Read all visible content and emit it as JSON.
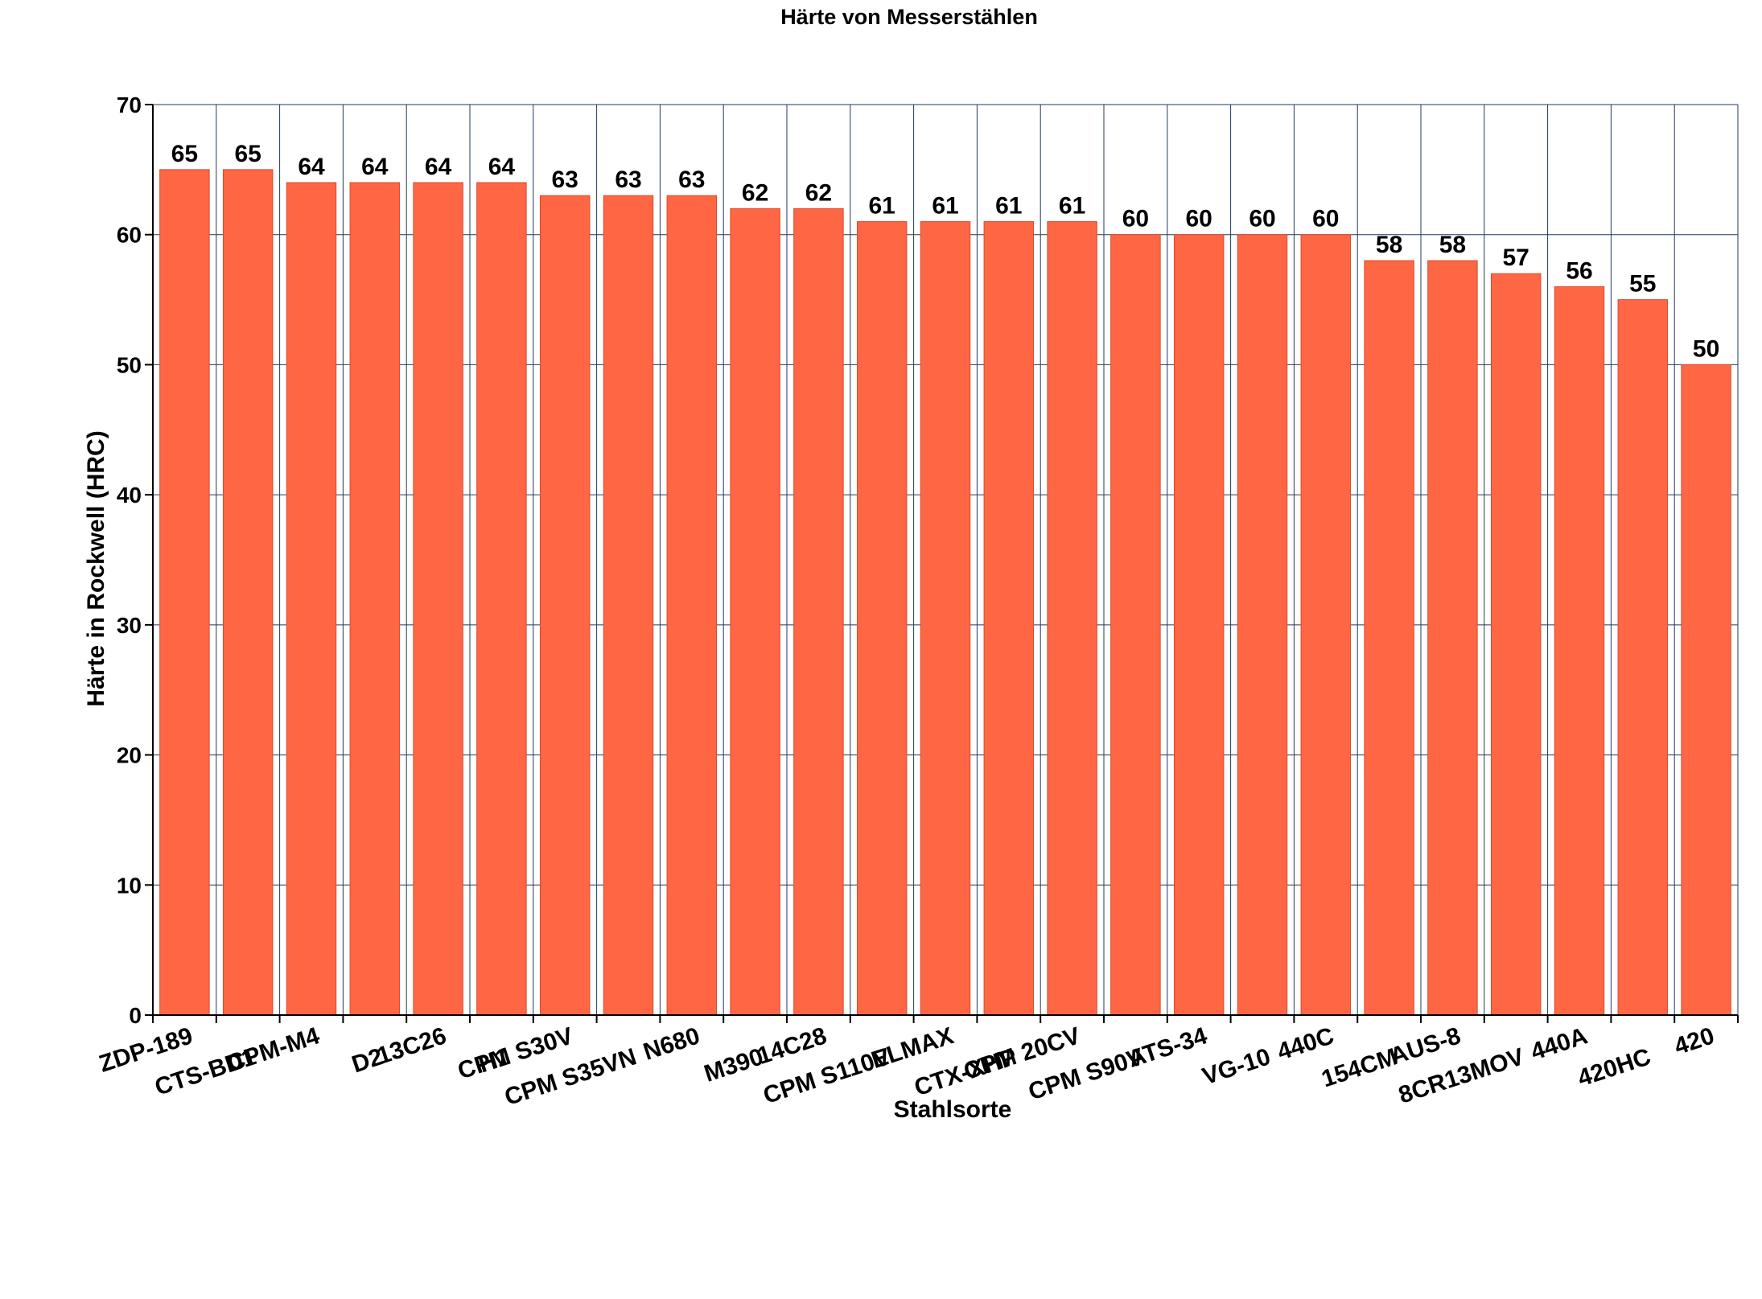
{
  "chart_data": {
    "type": "bar",
    "title": "Härte von Messerstählen",
    "xlabel": "Stahlsorte",
    "ylabel": "Härte in Rockwell (HRC)",
    "ylim": [
      0,
      70
    ],
    "yticks": [
      0,
      10,
      20,
      30,
      40,
      50,
      60,
      70
    ],
    "grid": true,
    "bar_color": "#ff6644",
    "grid_color": "#1f3a5f",
    "categories": [
      "ZDP-189",
      "CTS-BD1",
      "CPM-M4",
      "D2",
      "13C26",
      "H1",
      "CPM S30V",
      "CPM S35VN",
      "N680",
      "M390",
      "14C28",
      "CPM S110V",
      "ELMAX",
      "CTX-XHP",
      "CPM 20CV",
      "CPM S90V",
      "ATS-34",
      "VG-10",
      "440C",
      "154CM",
      "AUS-8",
      "8CR13MOV",
      "440A",
      "420HC",
      "420"
    ],
    "values": [
      65,
      65,
      64,
      64,
      64,
      64,
      63,
      63,
      63,
      62,
      62,
      61,
      61,
      61,
      61,
      60,
      60,
      60,
      60,
      58,
      58,
      57,
      56,
      55,
      50
    ]
  }
}
